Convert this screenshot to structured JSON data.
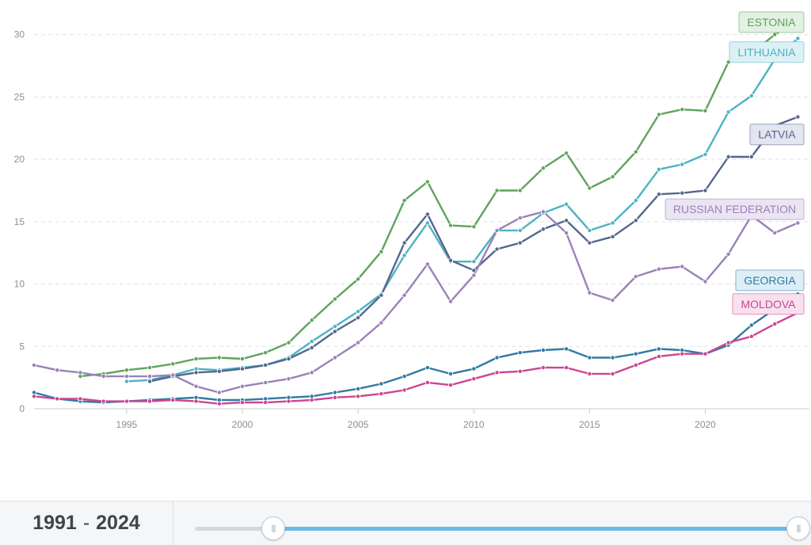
{
  "chart_data": {
    "type": "line",
    "x": [
      1991,
      1992,
      1993,
      1994,
      1995,
      1996,
      1997,
      1998,
      1999,
      2000,
      2001,
      2002,
      2003,
      2004,
      2005,
      2006,
      2007,
      2008,
      2009,
      2010,
      2011,
      2012,
      2013,
      2014,
      2015,
      2016,
      2017,
      2018,
      2019,
      2020,
      2021,
      2022,
      2023,
      2024
    ],
    "xlim": [
      1991,
      2024.5
    ],
    "ylim": [
      0,
      31
    ],
    "x_ticks": [
      1995,
      2000,
      2005,
      2010,
      2015,
      2020
    ],
    "y_ticks": [
      0,
      5,
      10,
      15,
      20,
      25,
      30
    ],
    "grid": "horizontal dashed",
    "series": [
      {
        "name": "ESTONIA",
        "color": "#5fa35d",
        "label_bg": "#e2f1e1",
        "values": [
          null,
          null,
          2.6,
          2.8,
          3.1,
          3.3,
          3.6,
          4.0,
          4.1,
          4.0,
          4.5,
          5.3,
          7.1,
          8.8,
          10.4,
          12.6,
          16.7,
          18.2,
          14.7,
          14.6,
          17.5,
          17.5,
          19.3,
          20.5,
          17.7,
          18.6,
          20.6,
          23.6,
          24.0,
          23.9,
          27.8,
          28.5,
          30.0,
          31.2
        ]
      },
      {
        "name": "LITHUANIA",
        "color": "#4bb3c4",
        "label_bg": "#ddf1f5",
        "values": [
          null,
          null,
          null,
          null,
          2.2,
          2.3,
          2.7,
          3.2,
          3.1,
          3.3,
          3.5,
          4.1,
          5.4,
          6.6,
          7.8,
          9.2,
          12.3,
          14.9,
          11.8,
          11.8,
          14.3,
          14.3,
          15.7,
          16.4,
          14.3,
          14.9,
          16.7,
          19.2,
          19.6,
          20.4,
          23.8,
          25.1,
          28.0,
          29.7
        ]
      },
      {
        "name": "LATVIA",
        "color": "#55668e",
        "label_bg": "#e3e5f0",
        "values": [
          null,
          null,
          null,
          null,
          null,
          2.2,
          2.6,
          2.9,
          3.0,
          3.2,
          3.5,
          4.0,
          4.9,
          6.2,
          7.3,
          9.1,
          13.3,
          15.6,
          11.9,
          11.1,
          12.8,
          13.3,
          14.4,
          15.1,
          13.3,
          13.8,
          15.1,
          17.2,
          17.3,
          17.5,
          20.2,
          20.2,
          22.7,
          23.4
        ]
      },
      {
        "name": "RUSSIAN FEDERATION",
        "color": "#9a82b8",
        "label_bg": "#ebe4f2",
        "values": [
          3.5,
          3.1,
          2.9,
          2.6,
          2.6,
          2.6,
          2.7,
          1.8,
          1.3,
          1.8,
          2.1,
          2.4,
          2.9,
          4.1,
          5.3,
          6.9,
          9.1,
          11.6,
          8.6,
          10.7,
          14.3,
          15.3,
          15.8,
          14.1,
          9.3,
          8.7,
          10.6,
          11.2,
          11.4,
          10.2,
          12.4,
          15.5,
          14.1,
          14.9
        ]
      },
      {
        "name": "GEORGIA",
        "color": "#2f7aa3",
        "label_bg": "#deeef7",
        "values": [
          1.3,
          0.8,
          0.6,
          0.5,
          0.6,
          0.7,
          0.8,
          0.9,
          0.7,
          0.7,
          0.8,
          0.9,
          1.0,
          1.3,
          1.6,
          2.0,
          2.6,
          3.3,
          2.8,
          3.2,
          4.1,
          4.5,
          4.7,
          4.8,
          4.1,
          4.1,
          4.4,
          4.8,
          4.7,
          4.4,
          5.1,
          6.7,
          8.0,
          9.2
        ]
      },
      {
        "name": "MOLDOVA",
        "color": "#cc4592",
        "label_bg": "#f8e1ee",
        "values": [
          1.0,
          0.8,
          0.8,
          0.6,
          0.6,
          0.6,
          0.7,
          0.6,
          0.4,
          0.5,
          0.5,
          0.6,
          0.7,
          0.9,
          1.0,
          1.2,
          1.5,
          2.1,
          1.9,
          2.4,
          2.9,
          3.0,
          3.3,
          3.3,
          2.8,
          2.8,
          3.5,
          4.2,
          4.4,
          4.4,
          5.3,
          5.8,
          6.8,
          7.7
        ]
      }
    ]
  },
  "range": {
    "start": "1991",
    "separator": "-",
    "end": "2024",
    "start_frac": 0.13,
    "end_frac": 1.0
  }
}
